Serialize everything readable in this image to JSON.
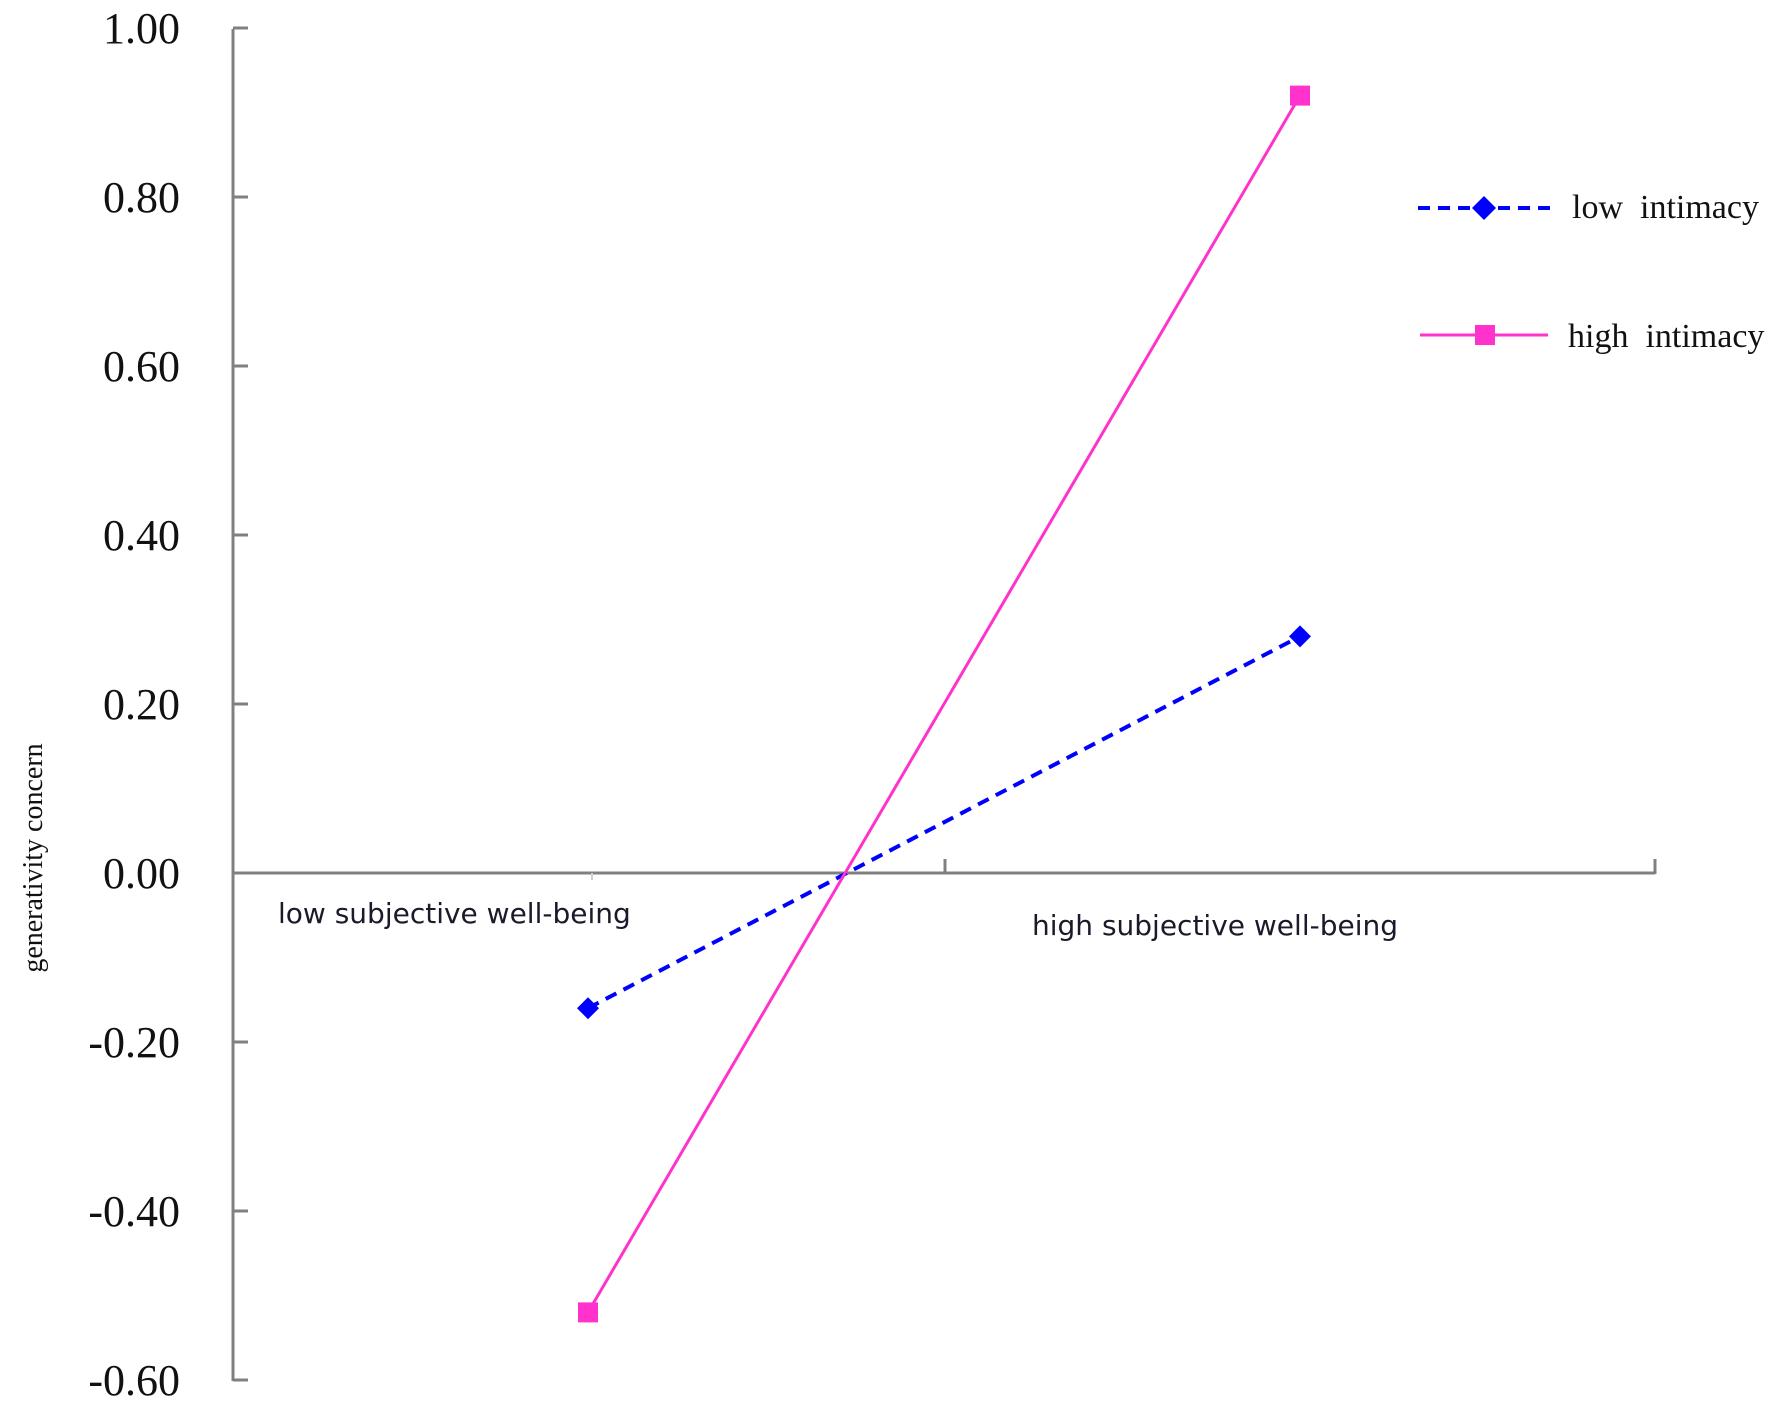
{
  "chart_data": {
    "type": "line",
    "title": "",
    "xlabel": "",
    "ylabel": "generativity concern",
    "categories": [
      "low subjective well-being",
      "high subjective well-being"
    ],
    "series": [
      {
        "name": "low  intimacy",
        "values": [
          -0.16,
          0.28
        ],
        "color": "#0000ff",
        "line_style": "dashed",
        "marker": "diamond"
      },
      {
        "name": "high  intimacy",
        "values": [
          -0.52,
          0.92
        ],
        "color": "#ff33cc",
        "line_style": "solid",
        "marker": "square"
      }
    ],
    "y_ticks": [
      "1.00",
      "0.80",
      "0.60",
      "0.40",
      "0.20",
      "0.00",
      "-0.20",
      "-0.40",
      "-0.60"
    ],
    "ylim": [
      -0.6,
      1.0
    ],
    "grid": false,
    "legend_position": "upper right",
    "axis_color": "#808080"
  }
}
